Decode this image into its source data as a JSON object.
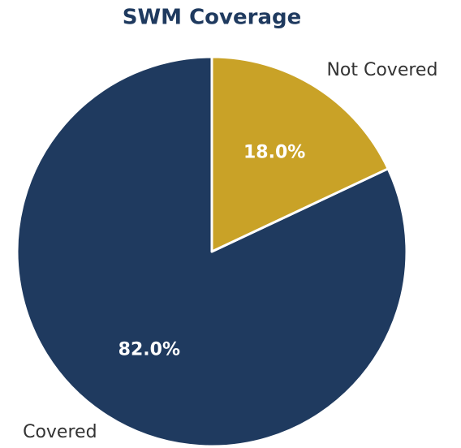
{
  "chart_data": {
    "type": "pie",
    "title": "SWM Coverage",
    "categories": [
      "Covered",
      "Not Covered"
    ],
    "values": [
      82,
      18
    ],
    "value_labels": [
      "82.0%",
      "18.0%"
    ],
    "colors": [
      "#1f3a5f",
      "#c9a227"
    ],
    "start_angle": 90,
    "counterclockwise": true
  }
}
